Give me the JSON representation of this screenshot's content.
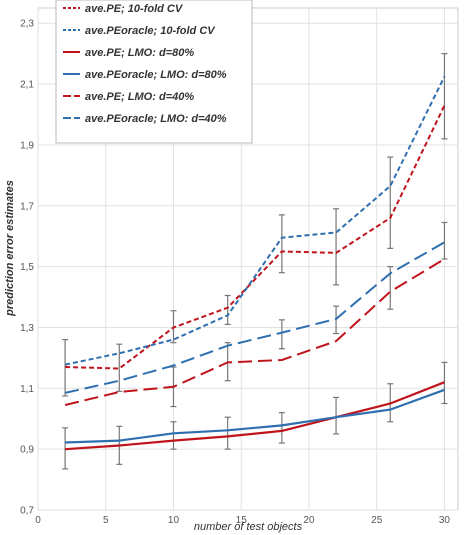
{
  "chart_data": {
    "type": "line",
    "xlabel": "number of test objects",
    "ylabel": "prediction error estimates",
    "xlim": [
      0,
      31
    ],
    "ylim": [
      0.7,
      2.35
    ],
    "x_ticks": [
      "0",
      "5",
      "10",
      "15",
      "20",
      "25",
      "30"
    ],
    "y_ticks": [
      "0,7",
      "0,9",
      "1,1",
      "1,3",
      "1,5",
      "1,7",
      "1,9",
      "2,1",
      "2,3"
    ],
    "grid": true,
    "legend_position": "top-left",
    "x": [
      2,
      6,
      10,
      14,
      18,
      22,
      26,
      30
    ],
    "series": [
      {
        "name": "ave.PE; 10-fold CV",
        "color": "#c0141c",
        "dash": "short",
        "values": [
          1.17,
          1.165,
          1.3,
          1.365,
          1.55,
          1.545,
          1.66,
          2.03
        ]
      },
      {
        "name": "ave.PEoracle; 10-fold CV",
        "color": "#2f6fb0",
        "dash": "short",
        "values": [
          1.178,
          1.215,
          1.26,
          1.34,
          1.595,
          1.612,
          1.765,
          2.125
        ]
      },
      {
        "name": "ave.PE;  LMO: d=80%",
        "color": "#c0141c",
        "dash": "solid",
        "values": [
          0.9,
          0.912,
          0.928,
          0.942,
          0.96,
          1.005,
          1.05,
          1.12
        ]
      },
      {
        "name": "ave.PEoracle; LMO: d=80%",
        "color": "#2f6fb0",
        "dash": "solid",
        "values": [
          0.922,
          0.928,
          0.952,
          0.962,
          0.978,
          1.005,
          1.03,
          1.095
        ]
      },
      {
        "name": "ave.PE; LMO: d=40%",
        "color": "#c0141c",
        "dash": "long",
        "values": [
          1.045,
          1.088,
          1.105,
          1.185,
          1.193,
          1.255,
          1.418,
          1.525
        ]
      },
      {
        "name": "ave.PEoracle; LMO: d=40%",
        "color": "#2f6fb0",
        "dash": "long",
        "values": [
          1.085,
          1.125,
          1.175,
          1.24,
          1.283,
          1.328,
          1.478,
          1.58
        ]
      }
    ],
    "error_bars": [
      {
        "x": 2,
        "low": 1.075,
        "high": 1.26
      },
      {
        "x": 2,
        "low": 0.835,
        "high": 0.97
      },
      {
        "x": 6,
        "low": 1.09,
        "high": 1.245
      },
      {
        "x": 6,
        "low": 0.85,
        "high": 0.975
      },
      {
        "x": 10,
        "low": 1.25,
        "high": 1.355
      },
      {
        "x": 10,
        "low": 1.04,
        "high": 1.17
      },
      {
        "x": 10,
        "low": 0.9,
        "high": 0.99
      },
      {
        "x": 14,
        "low": 1.31,
        "high": 1.405
      },
      {
        "x": 14,
        "low": 1.125,
        "high": 1.25
      },
      {
        "x": 14,
        "low": 0.9,
        "high": 1.005
      },
      {
        "x": 18,
        "low": 1.48,
        "high": 1.67
      },
      {
        "x": 18,
        "low": 1.23,
        "high": 1.325
      },
      {
        "x": 18,
        "low": 0.92,
        "high": 1.02
      },
      {
        "x": 22,
        "low": 1.44,
        "high": 1.69
      },
      {
        "x": 22,
        "low": 1.28,
        "high": 1.37
      },
      {
        "x": 22,
        "low": 0.95,
        "high": 1.07
      },
      {
        "x": 26,
        "low": 1.56,
        "high": 1.86
      },
      {
        "x": 26,
        "low": 1.36,
        "high": 1.5
      },
      {
        "x": 26,
        "low": 0.99,
        "high": 1.115
      },
      {
        "x": 30,
        "low": 1.92,
        "high": 2.2
      },
      {
        "x": 30,
        "low": 1.525,
        "high": 1.645
      },
      {
        "x": 30,
        "low": 1.05,
        "high": 1.185
      }
    ],
    "error_bar_color": "#777777"
  }
}
